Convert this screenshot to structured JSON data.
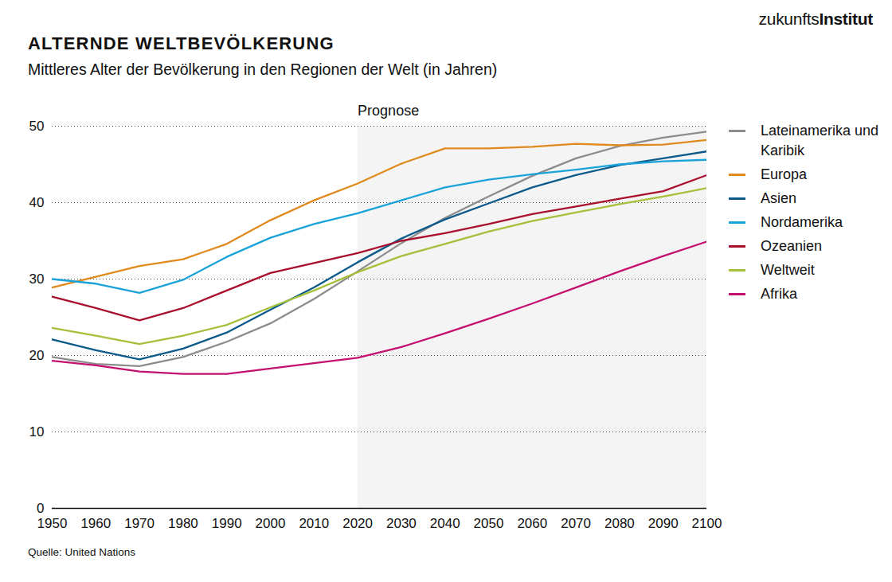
{
  "chart_data": {
    "type": "line",
    "title": "ALTERNDE WELTBEVÖLKERUNG",
    "subtitle": "Mittleres Alter der Bevölkerung in den Regionen der Welt (in Jahren)",
    "source": "Quelle: United Nations",
    "logo": "zukunftsInstitut",
    "x": [
      1950,
      1960,
      1970,
      1980,
      1990,
      2000,
      2010,
      2020,
      2030,
      2040,
      2050,
      2060,
      2070,
      2080,
      2090,
      2100
    ],
    "series": [
      {
        "name": "Lateinamerika und Karibik",
        "color": "#8c8c8c",
        "values": [
          19.8,
          18.9,
          18.6,
          19.8,
          21.8,
          24.2,
          27.4,
          31.0,
          34.7,
          38.0,
          40.8,
          43.5,
          45.8,
          47.4,
          48.5,
          49.3
        ]
      },
      {
        "name": "Europa",
        "color": "#e08a1e",
        "values": [
          28.9,
          30.3,
          31.7,
          32.6,
          34.6,
          37.7,
          40.3,
          42.5,
          45.1,
          47.1,
          47.1,
          47.3,
          47.7,
          47.5,
          47.6,
          48.2
        ]
      },
      {
        "name": "Asien",
        "color": "#0b5a8a",
        "values": [
          22.1,
          20.7,
          19.5,
          20.9,
          23.0,
          26.0,
          28.9,
          32.2,
          35.3,
          37.8,
          39.9,
          42.0,
          43.6,
          44.9,
          45.8,
          46.7
        ]
      },
      {
        "name": "Nordamerika",
        "color": "#1aa3d9",
        "values": [
          30.0,
          29.4,
          28.2,
          29.9,
          32.9,
          35.4,
          37.2,
          38.6,
          40.3,
          42.0,
          43.0,
          43.7,
          44.3,
          45.0,
          45.4,
          45.6
        ]
      },
      {
        "name": "Ozeanien",
        "color": "#a8102e",
        "values": [
          27.7,
          26.2,
          24.6,
          26.2,
          28.5,
          30.8,
          32.1,
          33.4,
          35.0,
          36.0,
          37.2,
          38.5,
          39.5,
          40.5,
          41.5,
          43.6
        ]
      },
      {
        "name": "Weltweit",
        "color": "#a5c03a",
        "values": [
          23.6,
          22.6,
          21.5,
          22.6,
          24.0,
          26.3,
          28.5,
          30.9,
          33.0,
          34.6,
          36.2,
          37.6,
          38.7,
          39.8,
          40.8,
          41.9
        ]
      },
      {
        "name": "Afrika",
        "color": "#c4106e",
        "values": [
          19.3,
          18.7,
          17.9,
          17.6,
          17.6,
          18.3,
          19.0,
          19.7,
          21.1,
          22.9,
          24.8,
          26.8,
          28.9,
          31.0,
          33.0,
          34.9
        ]
      }
    ],
    "xlim": [
      1950,
      2100
    ],
    "xticks": [
      1950,
      1960,
      1970,
      1980,
      1990,
      2000,
      2010,
      2020,
      2030,
      2040,
      2050,
      2060,
      2070,
      2080,
      2090,
      2100
    ],
    "ylim": [
      0,
      50
    ],
    "yticks": [
      0,
      10,
      20,
      30,
      40,
      50
    ],
    "grid": true,
    "legend": "right",
    "annotations": [
      {
        "text": "Prognose",
        "x_start": 2020,
        "x_end": 2100
      }
    ]
  }
}
